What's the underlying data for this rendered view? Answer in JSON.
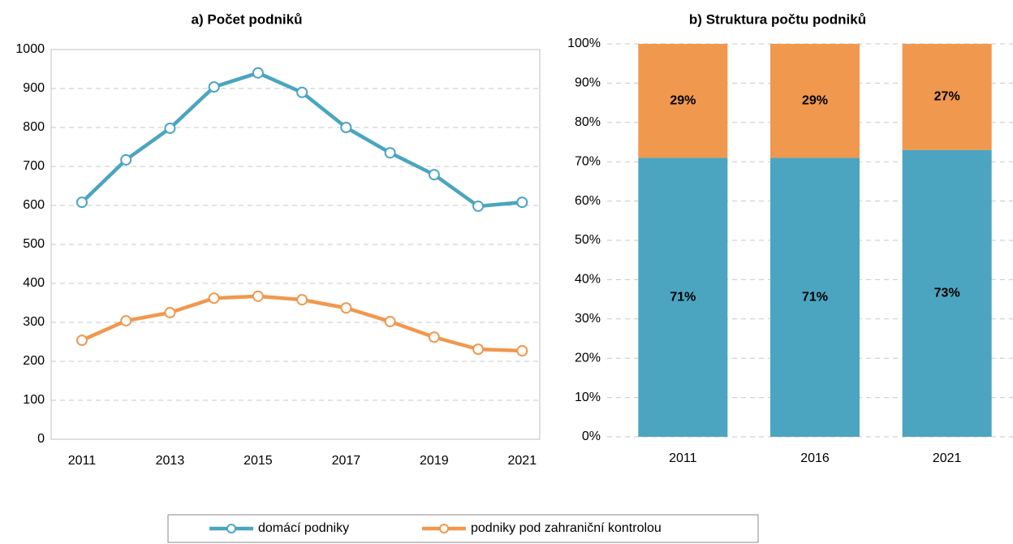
{
  "chart_data": [
    {
      "type": "line",
      "title": "a) Počet podniků",
      "x": [
        2011,
        2012,
        2013,
        2014,
        2015,
        2016,
        2017,
        2018,
        2019,
        2020,
        2021
      ],
      "series": [
        {
          "name": "domácí podniky",
          "color": "#4ba5c0",
          "values": [
            608,
            717,
            798,
            904,
            940,
            890,
            800,
            735,
            679,
            598,
            608
          ]
        },
        {
          "name": "podniky pod zahraniční kontrolou",
          "color": "#f0984e",
          "values": [
            254,
            304,
            325,
            362,
            367,
            358,
            337,
            302,
            262,
            231,
            227
          ]
        }
      ],
      "xlim": [
        2010.3,
        2021.4
      ],
      "xticks": [
        2011,
        2013,
        2015,
        2017,
        2019,
        2021
      ],
      "ylim": [
        0,
        1000
      ],
      "yticks": [
        0,
        100,
        200,
        300,
        400,
        500,
        600,
        700,
        800,
        900,
        1000
      ],
      "grid": true
    },
    {
      "type": "stacked_bar",
      "title": "b) Struktura počtu podniků",
      "categories": [
        "2011",
        "2016",
        "2021"
      ],
      "series": [
        {
          "color": "#4ba5c0",
          "values": [
            71,
            71,
            73
          ],
          "value_labels": [
            "71%",
            "71%",
            "73%"
          ]
        },
        {
          "color": "#f0984e",
          "values": [
            29,
            29,
            27
          ],
          "value_labels": [
            "29%",
            "29%",
            "27%"
          ]
        }
      ],
      "ylim": [
        0,
        100
      ],
      "yticks": [
        {
          "value": 0,
          "label": "0%"
        },
        {
          "value": 10,
          "label": "10%"
        },
        {
          "value": 20,
          "label": "20%"
        },
        {
          "value": 30,
          "label": "30%"
        },
        {
          "value": 40,
          "label": "40%"
        },
        {
          "value": 50,
          "label": "50%"
        },
        {
          "value": 60,
          "label": "60%"
        },
        {
          "value": 70,
          "label": "70%"
        },
        {
          "value": 80,
          "label": "80%"
        },
        {
          "value": 90,
          "label": "90%"
        },
        {
          "value": 100,
          "label": "100%"
        }
      ],
      "grid": true
    }
  ]
}
